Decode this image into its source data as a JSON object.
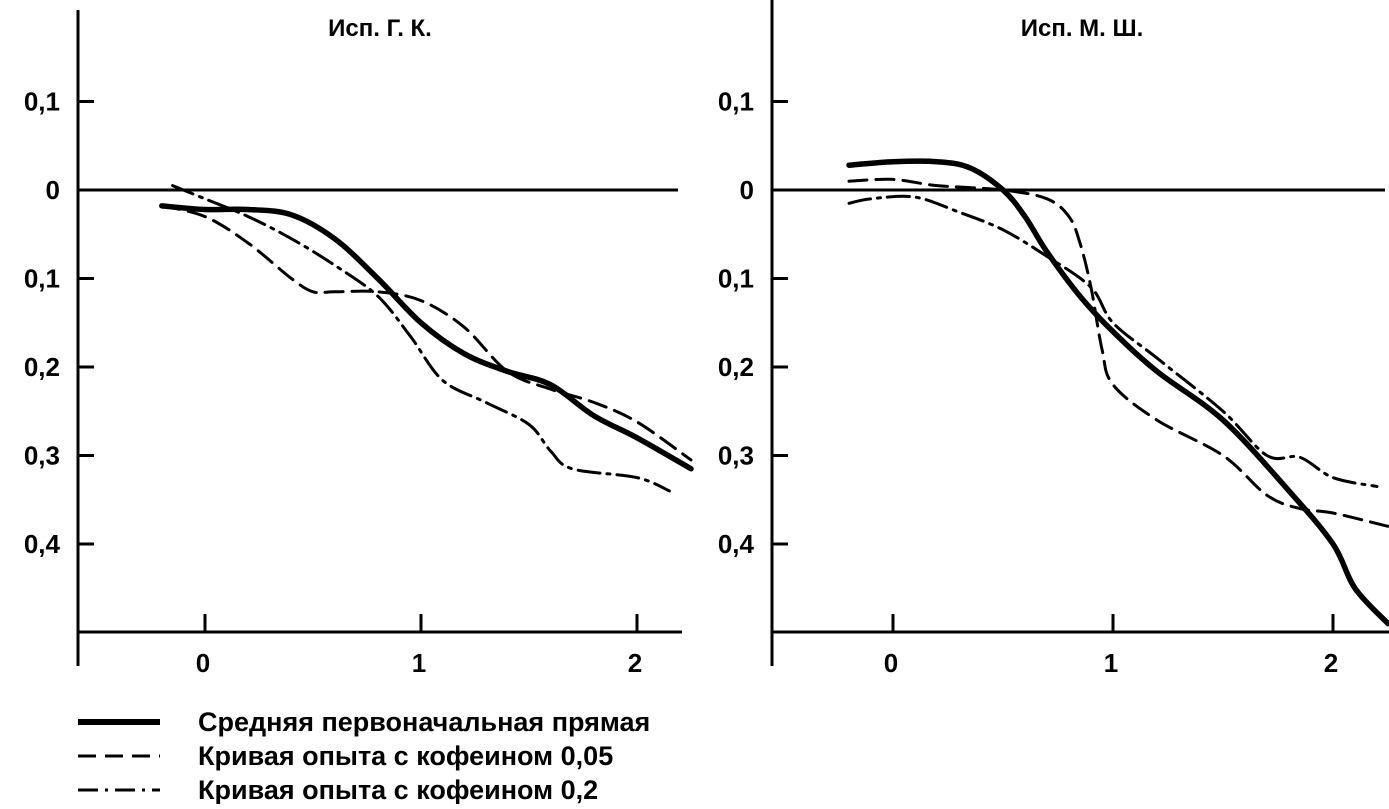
{
  "chart_data": [
    {
      "type": "line",
      "title": "Исп. Г. К.",
      "xlabel": "",
      "ylabel": "",
      "xlim": [
        -0.6,
        2.25
      ],
      "ylim": [
        -0.49,
        0.19
      ],
      "x_ticks": [
        {
          "value": 0,
          "label": "0"
        },
        {
          "value": 1,
          "label": "1"
        },
        {
          "value": 2,
          "label": "2"
        }
      ],
      "y_ticks": [
        {
          "value": 0.1,
          "label": "0,1"
        },
        {
          "value": 0,
          "label": "0"
        },
        {
          "value": -0.1,
          "label": "0,1"
        },
        {
          "value": -0.2,
          "label": "0,2"
        },
        {
          "value": -0.3,
          "label": "0,3"
        },
        {
          "value": -0.4,
          "label": "0,4"
        }
      ],
      "reference_line": 0,
      "series": [
        {
          "name": "Средняя первоначальная прямая",
          "style": "solid",
          "x": [
            -0.2,
            0.0,
            0.2,
            0.4,
            0.6,
            0.8,
            1.0,
            1.2,
            1.4,
            1.6,
            1.8,
            2.0,
            2.25
          ],
          "y": [
            -0.018,
            -0.022,
            -0.022,
            -0.028,
            -0.055,
            -0.1,
            -0.15,
            -0.185,
            -0.205,
            -0.22,
            -0.255,
            -0.28,
            -0.315
          ]
        },
        {
          "name": "Кривая опыта с кофеином 0,05",
          "style": "dashed",
          "x": [
            -0.2,
            0.0,
            0.2,
            0.4,
            0.5,
            0.6,
            0.8,
            1.0,
            1.2,
            1.4,
            1.6,
            1.8,
            2.0,
            2.25
          ],
          "y": [
            -0.018,
            -0.03,
            -0.06,
            -0.1,
            -0.115,
            -0.115,
            -0.115,
            -0.125,
            -0.155,
            -0.205,
            -0.225,
            -0.24,
            -0.262,
            -0.305
          ]
        },
        {
          "name": "Кривая опыта с кофеином 0,2",
          "style": "dashdot",
          "x": [
            -0.15,
            0.0,
            0.2,
            0.4,
            0.6,
            0.8,
            0.95,
            1.1,
            1.3,
            1.5,
            1.6,
            1.7,
            2.0,
            2.15
          ],
          "y": [
            0.005,
            -0.01,
            -0.03,
            -0.055,
            -0.085,
            -0.12,
            -0.165,
            -0.215,
            -0.24,
            -0.265,
            -0.295,
            -0.315,
            -0.325,
            -0.34
          ]
        }
      ]
    },
    {
      "type": "line",
      "title": "Исп. М. Ш.",
      "xlabel": "",
      "ylabel": "",
      "xlim": [
        -0.55,
        2.25
      ],
      "ylim": [
        -0.49,
        0.19
      ],
      "x_ticks": [
        {
          "value": 0,
          "label": "0"
        },
        {
          "value": 1,
          "label": "1"
        },
        {
          "value": 2,
          "label": "2"
        }
      ],
      "y_ticks": [
        {
          "value": 0.1,
          "label": "0,1"
        },
        {
          "value": 0,
          "label": "0"
        },
        {
          "value": -0.1,
          "label": "0,1"
        },
        {
          "value": -0.2,
          "label": "0,2"
        },
        {
          "value": -0.3,
          "label": "0,3"
        },
        {
          "value": -0.4,
          "label": "0,4"
        }
      ],
      "reference_line": 0,
      "series": [
        {
          "name": "Средняя первоначальная прямая",
          "style": "solid",
          "x": [
            -0.2,
            0.0,
            0.2,
            0.35,
            0.5,
            0.6,
            0.7,
            0.85,
            1.0,
            1.2,
            1.5,
            1.8,
            2.0,
            2.1,
            2.25
          ],
          "y": [
            0.028,
            0.032,
            0.032,
            0.025,
            0.0,
            -0.03,
            -0.07,
            -0.12,
            -0.16,
            -0.205,
            -0.26,
            -0.34,
            -0.4,
            -0.45,
            -0.49
          ]
        },
        {
          "name": "Кривая опыта с кофеином 0,05",
          "style": "dashed",
          "x": [
            -0.2,
            0.0,
            0.2,
            0.5,
            0.7,
            0.8,
            0.85,
            0.9,
            0.95,
            1.0,
            1.2,
            1.5,
            1.7,
            1.85,
            2.0,
            2.25
          ],
          "y": [
            0.01,
            0.012,
            0.005,
            0.0,
            -0.01,
            -0.03,
            -0.06,
            -0.11,
            -0.18,
            -0.22,
            -0.26,
            -0.3,
            -0.345,
            -0.36,
            -0.365,
            -0.38
          ]
        },
        {
          "name": "Кривая опыта с кофеином 0,2",
          "style": "dashdot",
          "x": [
            -0.2,
            -0.1,
            0.1,
            0.3,
            0.5,
            0.7,
            0.9,
            1.0,
            1.2,
            1.5,
            1.7,
            1.85,
            2.0,
            2.2
          ],
          "y": [
            -0.015,
            -0.01,
            -0.008,
            -0.025,
            -0.045,
            -0.075,
            -0.11,
            -0.15,
            -0.19,
            -0.25,
            -0.3,
            -0.302,
            -0.325,
            -0.335
          ]
        }
      ]
    }
  ],
  "legend": {
    "items": [
      {
        "label": "Средняя первоначальная прямая",
        "style": "solid"
      },
      {
        "label": "Кривая опыта с кофеином 0,05",
        "style": "dashed"
      },
      {
        "label": "Кривая опыта с кофеином 0,2",
        "style": "dashdot"
      }
    ]
  }
}
